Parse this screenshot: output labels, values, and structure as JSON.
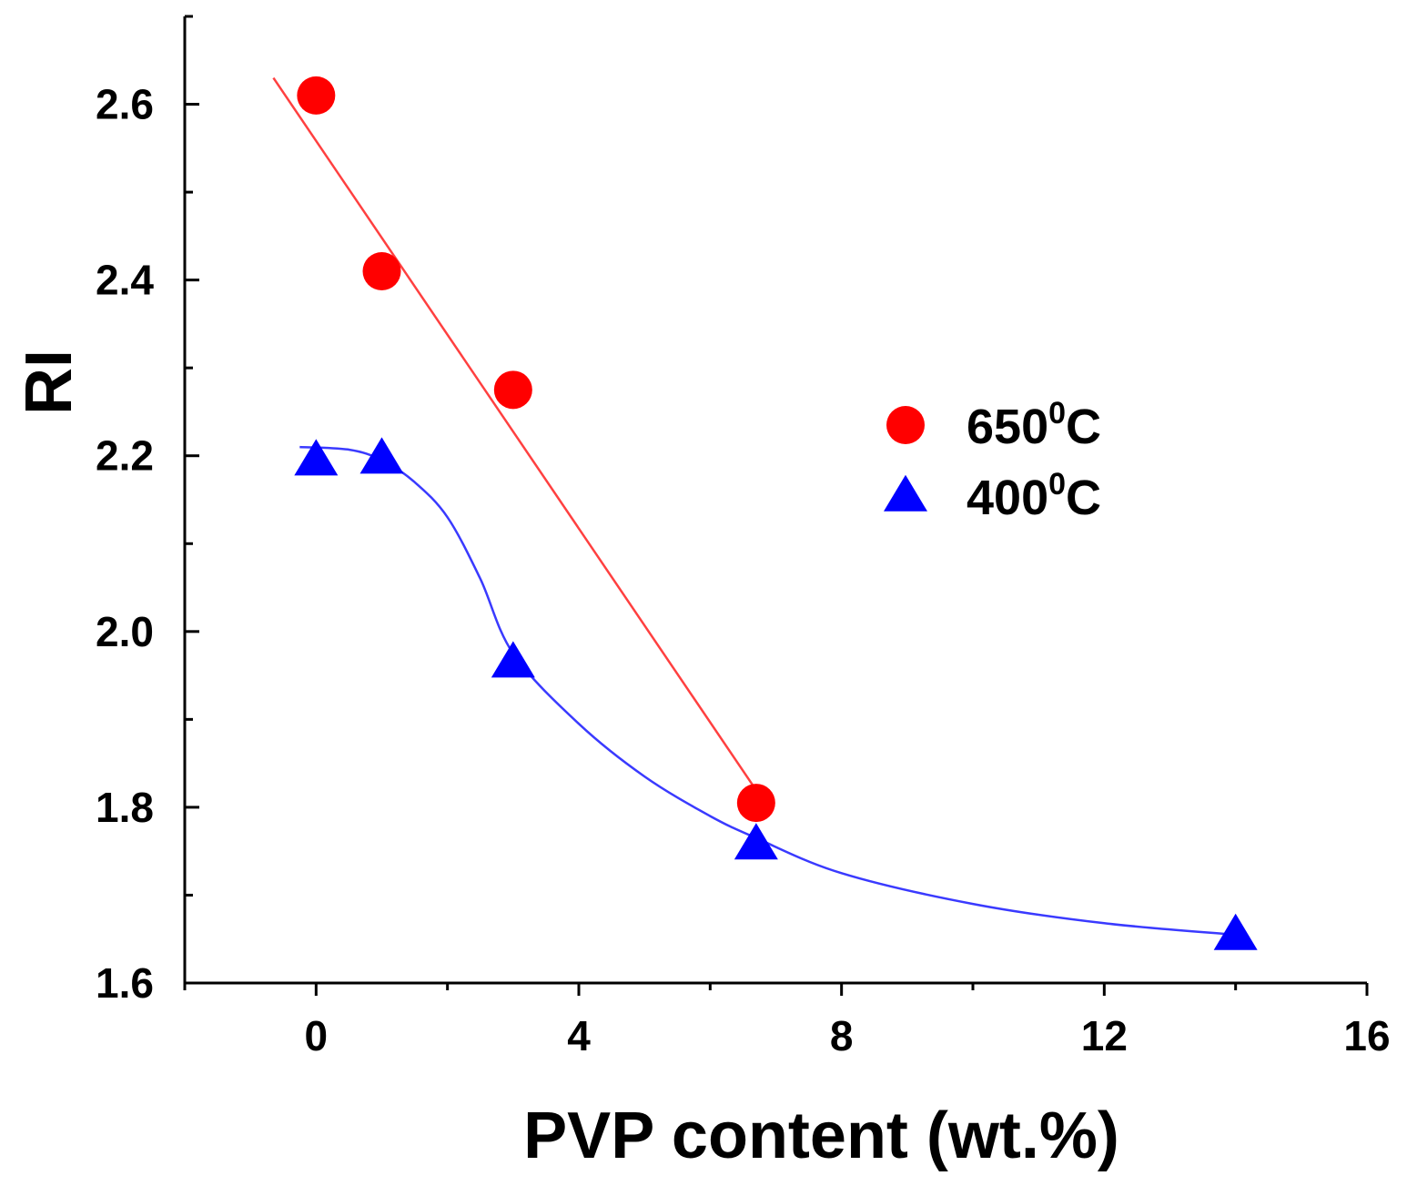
{
  "chart_data": {
    "type": "scatter",
    "title": "",
    "xlabel": "PVP content (wt.%)",
    "ylabel": "RI",
    "xlim": [
      -2,
      16
    ],
    "ylim": [
      1.6,
      2.7
    ],
    "x_ticks": [
      0,
      4,
      8,
      12,
      16
    ],
    "x_tick_labels": [
      "0",
      "4",
      "8",
      "12",
      "16"
    ],
    "y_ticks": [
      1.6,
      1.8,
      2.0,
      2.2,
      2.4,
      2.6
    ],
    "y_tick_labels": [
      "1.6",
      "1.8",
      "2.0",
      "2.2",
      "2.4",
      "2.6"
    ],
    "grid": false,
    "legend_position": "center-right",
    "series": [
      {
        "name": "650°C",
        "legend_main": "650",
        "legend_sup": "0",
        "legend_unit": "C",
        "marker": "circle",
        "color": "#ff0000",
        "x": [
          0,
          1,
          3,
          6.7
        ],
        "y": [
          2.61,
          2.41,
          2.275,
          1.805
        ],
        "fit": {
          "type": "linear",
          "x": [
            -0.65,
            6.65
          ],
          "y": [
            2.63,
            1.825
          ],
          "color": "#ff4040"
        }
      },
      {
        "name": "400°C",
        "legend_main": "400",
        "legend_sup": "0",
        "legend_unit": "C",
        "marker": "triangle",
        "color": "#0000ff",
        "x": [
          0,
          1,
          3,
          6.7,
          14
        ],
        "y": [
          2.195,
          2.197,
          1.965,
          1.758,
          1.655
        ],
        "fit": {
          "type": "smooth",
          "x": [
            -0.25,
            0.5,
            1.0,
            1.5,
            2.0,
            2.5,
            3.0,
            4.0,
            5.0,
            6.0,
            6.7,
            8.0,
            10.0,
            12.0,
            14.0
          ],
          "y": [
            2.21,
            2.207,
            2.195,
            2.17,
            2.13,
            2.06,
            1.975,
            1.895,
            1.835,
            1.79,
            1.765,
            1.725,
            1.69,
            1.668,
            1.655
          ],
          "color": "#3a3aff"
        }
      }
    ]
  }
}
